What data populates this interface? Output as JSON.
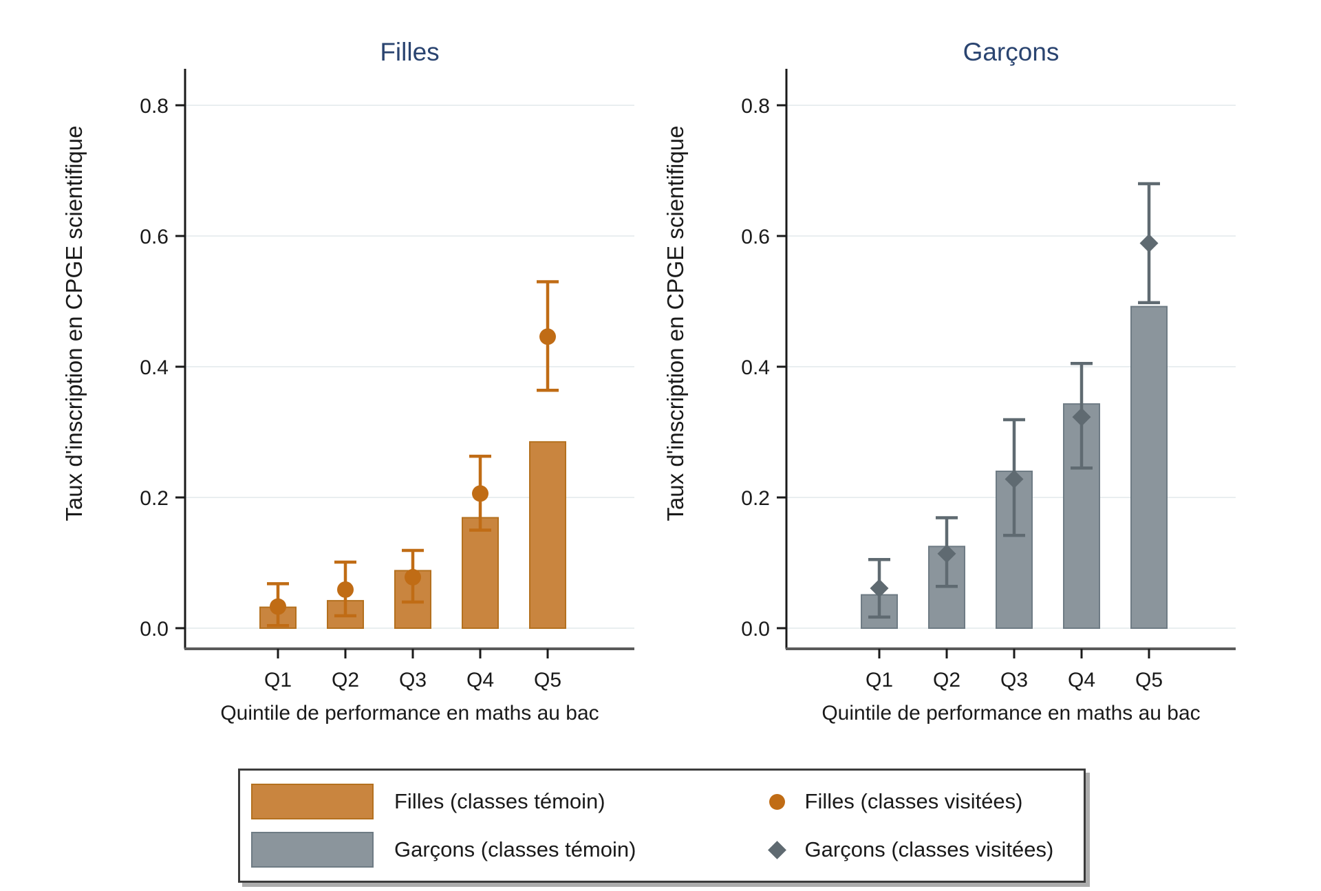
{
  "figure": {
    "background": "#ffffff",
    "text_color": "#1a1a1a",
    "grid_color": "#e9eef0",
    "axis_line_color": "#1a1a1a",
    "baseline_color": "#5a5a5a",
    "panel_title_color": "#2a4470"
  },
  "chart_data": [
    {
      "type": "bar",
      "title": "Filles",
      "xlabel": "Quintile de performance en maths au bac",
      "ylabel": "Taux d'inscription en CPGE scientifique",
      "categories": [
        "Q1",
        "Q2",
        "Q3",
        "Q4",
        "Q5"
      ],
      "ylim": [
        0,
        0.8
      ],
      "yticks": [
        "0.0",
        "0.2",
        "0.4",
        "0.6",
        "0.8"
      ],
      "grid": true,
      "legend_position": "bottom",
      "series": [
        {
          "name": "Filles (classes témoin)",
          "type": "bar",
          "fill": "#c9853f",
          "stroke": "#b4701e",
          "values": [
            0.032,
            0.042,
            0.088,
            0.169,
            0.285
          ]
        },
        {
          "name": "Filles (classes visitées)",
          "type": "scatter-ci",
          "marker": "circle",
          "color": "#c06c15",
          "values": [
            0.033,
            0.059,
            0.078,
            0.206,
            0.446
          ],
          "ci_low": [
            0.004,
            0.019,
            0.04,
            0.15,
            0.364
          ],
          "ci_high": [
            0.068,
            0.101,
            0.119,
            0.263,
            0.53
          ]
        }
      ]
    },
    {
      "type": "bar",
      "title": "Garçons",
      "xlabel": "Quintile de performance en maths au bac",
      "ylabel": "Taux d'inscription en CPGE scientifique",
      "categories": [
        "Q1",
        "Q2",
        "Q3",
        "Q4",
        "Q5"
      ],
      "ylim": [
        0,
        0.8
      ],
      "yticks": [
        "0.0",
        "0.2",
        "0.4",
        "0.6",
        "0.8"
      ],
      "grid": true,
      "legend_position": "bottom",
      "series": [
        {
          "name": "Garçons (classes témoin)",
          "type": "bar",
          "fill": "#8b959c",
          "stroke": "#6e7b84",
          "values": [
            0.051,
            0.125,
            0.24,
            0.343,
            0.492
          ]
        },
        {
          "name": "Garçons (classes visitées)",
          "type": "scatter-ci",
          "marker": "diamond",
          "color": "#5f6a71",
          "values": [
            0.061,
            0.114,
            0.228,
            0.323,
            0.589
          ],
          "ci_low": [
            0.017,
            0.064,
            0.142,
            0.245,
            0.498
          ],
          "ci_high": [
            0.105,
            0.169,
            0.319,
            0.405,
            0.68
          ]
        }
      ]
    }
  ],
  "legend": {
    "items": [
      {
        "label": "Filles (classes témoin)",
        "swatch": "bar",
        "color": "#c9853f",
        "border": "#b4701e"
      },
      {
        "label": "Filles (classes visitées)",
        "swatch": "circle",
        "color": "#c06c15"
      },
      {
        "label": "Garçons (classes témoin)",
        "swatch": "bar",
        "color": "#8b959c",
        "border": "#6e7b84"
      },
      {
        "label": "Garçons (classes visitées)",
        "swatch": "diamond",
        "color": "#5f6a71"
      }
    ]
  }
}
